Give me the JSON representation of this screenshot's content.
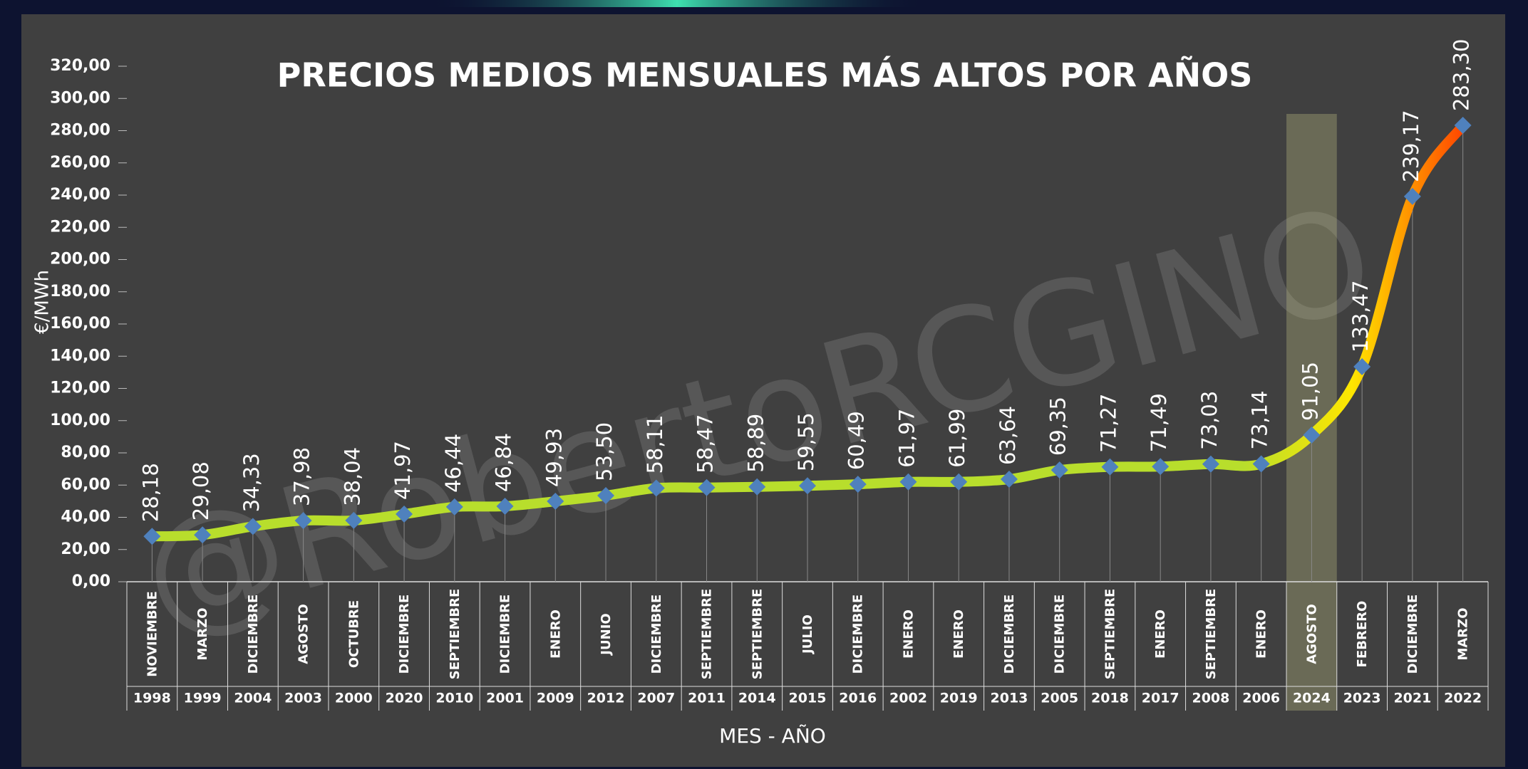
{
  "chart_data": {
    "type": "line",
    "title": "PRECIOS MEDIOS MENSUALES MÁS ALTOS POR AÑOS",
    "y_label": "€/MWh",
    "x_label": "MES - AÑO",
    "watermark": "@RobertoRCGINO",
    "categories": [
      {
        "month": "NOVIEMBRE",
        "year": "1998"
      },
      {
        "month": "MARZO",
        "year": "1999"
      },
      {
        "month": "DICIEMBRE",
        "year": "2004"
      },
      {
        "month": "AGOSTO",
        "year": "2003"
      },
      {
        "month": "OCTUBRE",
        "year": "2000"
      },
      {
        "month": "DICIEMBRE",
        "year": "2020"
      },
      {
        "month": "SEPTIEMBRE",
        "year": "2010"
      },
      {
        "month": "DICIEMBRE",
        "year": "2001"
      },
      {
        "month": "ENERO",
        "year": "2009"
      },
      {
        "month": "JUNIO",
        "year": "2012"
      },
      {
        "month": "DICIEMBRE",
        "year": "2007"
      },
      {
        "month": "SEPTIEMBRE",
        "year": "2011"
      },
      {
        "month": "SEPTIEMBRE",
        "year": "2014"
      },
      {
        "month": "JULIO",
        "year": "2015"
      },
      {
        "month": "DICIEMBRE",
        "year": "2016"
      },
      {
        "month": "ENERO",
        "year": "2002"
      },
      {
        "month": "ENERO",
        "year": "2019"
      },
      {
        "month": "DICIEMBRE",
        "year": "2013"
      },
      {
        "month": "DICIEMBRE",
        "year": "2005"
      },
      {
        "month": "SEPTIEMBRE",
        "year": "2018"
      },
      {
        "month": "ENERO",
        "year": "2017"
      },
      {
        "month": "SEPTIEMBRE",
        "year": "2008"
      },
      {
        "month": "ENERO",
        "year": "2006"
      },
      {
        "month": "AGOSTO",
        "year": "2024"
      },
      {
        "month": "FEBRERO",
        "year": "2023"
      },
      {
        "month": "DICIEMBRE",
        "year": "2021"
      },
      {
        "month": "MARZO",
        "year": "2022"
      }
    ],
    "values": [
      28.18,
      29.08,
      34.33,
      37.98,
      38.04,
      41.97,
      46.44,
      46.84,
      49.93,
      53.5,
      58.11,
      58.47,
      58.89,
      59.55,
      60.49,
      61.97,
      61.99,
      63.64,
      69.35,
      71.27,
      71.49,
      73.03,
      73.14,
      91.05,
      133.47,
      239.17,
      283.3
    ],
    "value_labels": [
      "28,18",
      "29,08",
      "34,33",
      "37,98",
      "38,04",
      "41,97",
      "46,44",
      "46,84",
      "49,93",
      "53,50",
      "58,11",
      "58,47",
      "58,89",
      "59,55",
      "60,49",
      "61,97",
      "61,99",
      "63,64",
      "69,35",
      "71,27",
      "71,49",
      "73,03",
      "73,14",
      "91,05",
      "133,47",
      "239,17",
      "283,30"
    ],
    "ylim": [
      0,
      320
    ],
    "yticks": [
      {
        "value": 0,
        "label": "0,00"
      },
      {
        "value": 20,
        "label": "20,00"
      },
      {
        "value": 40,
        "label": "40,00"
      },
      {
        "value": 60,
        "label": "60,00"
      },
      {
        "value": 80,
        "label": "80,00"
      },
      {
        "value": 100,
        "label": "100,00"
      },
      {
        "value": 120,
        "label": "120,00"
      },
      {
        "value": 140,
        "label": "140,00"
      },
      {
        "value": 160,
        "label": "160,00"
      },
      {
        "value": 180,
        "label": "180,00"
      },
      {
        "value": 200,
        "label": "200,00"
      },
      {
        "value": 220,
        "label": "220,00"
      },
      {
        "value": 240,
        "label": "240,00"
      },
      {
        "value": 260,
        "label": "260,00"
      },
      {
        "value": 280,
        "label": "280,00"
      },
      {
        "value": 300,
        "label": "300,00"
      },
      {
        "value": 320,
        "label": "320,00"
      }
    ],
    "highlight_index": 23,
    "line_colors": [
      "#b8de2c",
      "#ffe600",
      "#ff2200"
    ],
    "marker_color": "#4f81bd",
    "grid": false
  }
}
